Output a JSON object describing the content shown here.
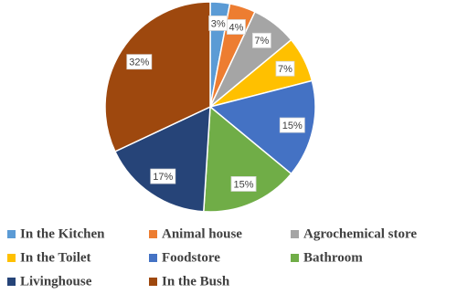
{
  "chart_data": {
    "type": "pie",
    "categories": [
      "In the Kitchen",
      "Animal house",
      "Agrochemical store",
      "In the Toilet",
      "Foodstore",
      "Bathroom",
      "Livinghouse",
      "In the Bush"
    ],
    "values": [
      3,
      4,
      7,
      7,
      15,
      15,
      17,
      32
    ],
    "value_labels": [
      "3%",
      "4%",
      "7%",
      "7%",
      "15%",
      "15%",
      "17%",
      "32%"
    ],
    "colors": [
      "#5b9bd5",
      "#ed7d31",
      "#a5a5a5",
      "#ffc000",
      "#4472c4",
      "#70ad47",
      "#264478",
      "#9e480e"
    ],
    "legend": "bottom"
  }
}
